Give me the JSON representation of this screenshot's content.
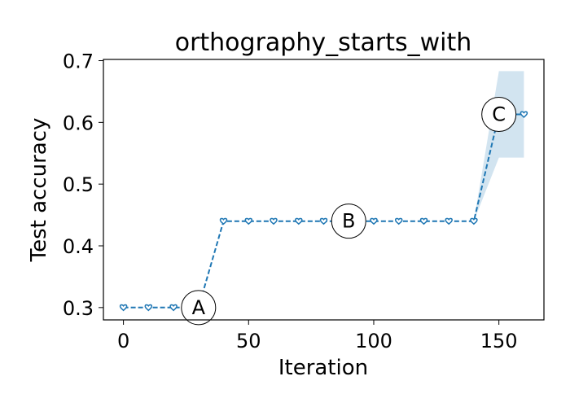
{
  "chart_data": {
    "type": "line",
    "title": "orthography_starts_with",
    "xlabel": "Iteration",
    "ylabel": "Test accuracy",
    "xlim": [
      -8,
      168
    ],
    "ylim": [
      0.28,
      0.702
    ],
    "xticks": [
      0,
      50,
      100,
      150
    ],
    "yticks": [
      0.3,
      0.4,
      0.5,
      0.6,
      0.7
    ],
    "xtick_labels": [
      "0",
      "50",
      "100",
      "150"
    ],
    "ytick_labels": [
      "0.3",
      "0.4",
      "0.5",
      "0.6",
      "0.7"
    ],
    "grid": false,
    "series": [
      {
        "x": [
          0,
          10,
          20,
          30,
          40,
          50,
          60,
          70,
          80,
          90,
          100,
          110,
          120,
          130,
          140,
          150,
          160
        ],
        "y": [
          0.3,
          0.3,
          0.3,
          0.3,
          0.44,
          0.44,
          0.44,
          0.44,
          0.44,
          0.44,
          0.44,
          0.44,
          0.44,
          0.44,
          0.44,
          0.613,
          0.613
        ],
        "lower": [
          0.3,
          0.3,
          0.3,
          0.3,
          0.44,
          0.44,
          0.44,
          0.44,
          0.44,
          0.44,
          0.44,
          0.44,
          0.44,
          0.44,
          0.44,
          0.543,
          0.543
        ],
        "upper": [
          0.3,
          0.3,
          0.3,
          0.3,
          0.44,
          0.44,
          0.44,
          0.44,
          0.44,
          0.44,
          0.44,
          0.44,
          0.44,
          0.44,
          0.44,
          0.683,
          0.683
        ],
        "color": "#1f77b4",
        "band_color": "#1f77b4",
        "line_style": "dashed",
        "marker": "heart"
      }
    ],
    "annotations": [
      {
        "label": "A",
        "x": 30,
        "y": 0.3
      },
      {
        "label": "B",
        "x": 90,
        "y": 0.44
      },
      {
        "label": "C",
        "x": 150,
        "y": 0.613
      }
    ]
  }
}
